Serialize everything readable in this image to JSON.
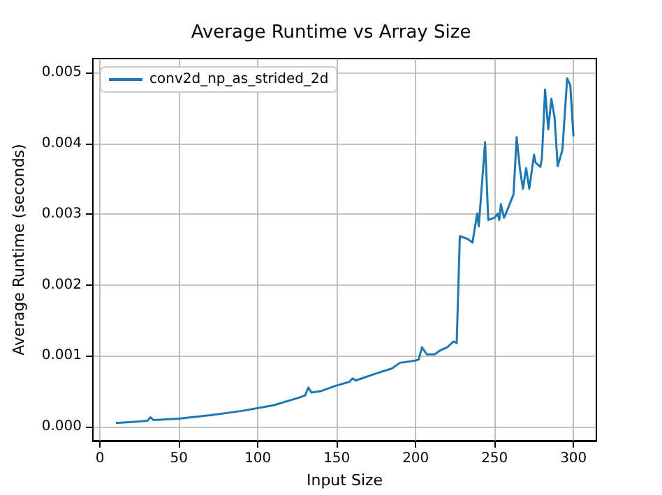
{
  "chart_data": {
    "type": "line",
    "title": "Average Runtime vs Array Size",
    "xlabel": "Input Size",
    "ylabel": "Average Runtime (seconds)",
    "xlim": [
      -4.5,
      314.5
    ],
    "xticks": [
      0,
      50,
      100,
      150,
      200,
      250,
      300
    ],
    "ylim": [
      -0.0002,
      0.0052
    ],
    "yticks": [
      {
        "value": 0,
        "label": "0.000"
      },
      {
        "value": 0.001,
        "label": "0.001"
      },
      {
        "value": 0.002,
        "label": "0.002"
      },
      {
        "value": 0.003,
        "label": "0.003"
      },
      {
        "value": 0.004,
        "label": "0.004"
      },
      {
        "value": 0.005,
        "label": "0.005"
      }
    ],
    "grid": true,
    "legend": "top left",
    "marker": "none",
    "line_style": "solid",
    "series": [
      {
        "name": "conv2d_np_as_strided_2d",
        "color": "#1f77b4",
        "x": [
          10,
          25,
          30,
          32,
          34,
          50,
          70,
          90,
          110,
          125,
          130,
          132,
          134,
          140,
          150,
          158,
          160,
          162,
          175,
          185,
          190,
          200,
          202,
          204,
          207,
          212,
          216,
          220,
          224,
          226,
          228,
          233,
          236,
          239,
          240,
          244,
          246,
          250,
          252,
          253,
          254,
          256,
          259,
          262,
          264,
          266,
          268,
          270,
          272,
          275,
          276,
          279,
          280,
          282,
          284,
          286,
          288,
          290,
          293,
          296,
          298,
          300
        ],
        "values": [
          5e-05,
          7e-05,
          8e-05,
          0.00013,
          9e-05,
          0.00011,
          0.00016,
          0.00022,
          0.0003,
          0.0004,
          0.00044,
          0.00055,
          0.00048,
          0.0005,
          0.00058,
          0.00063,
          0.00068,
          0.00065,
          0.00075,
          0.00082,
          0.0009,
          0.00093,
          0.00095,
          0.00112,
          0.00102,
          0.00102,
          0.00108,
          0.00112,
          0.0012,
          0.00118,
          0.00269,
          0.00265,
          0.0026,
          0.00301,
          0.00283,
          0.00402,
          0.00292,
          0.00295,
          0.00301,
          0.00292,
          0.00314,
          0.00295,
          0.00311,
          0.00328,
          0.00409,
          0.00365,
          0.00336,
          0.00365,
          0.00336,
          0.00384,
          0.00373,
          0.00367,
          0.00379,
          0.00476,
          0.0042,
          0.00463,
          0.00437,
          0.00368,
          0.00391,
          0.00492,
          0.00482,
          0.0041
        ]
      }
    ]
  }
}
